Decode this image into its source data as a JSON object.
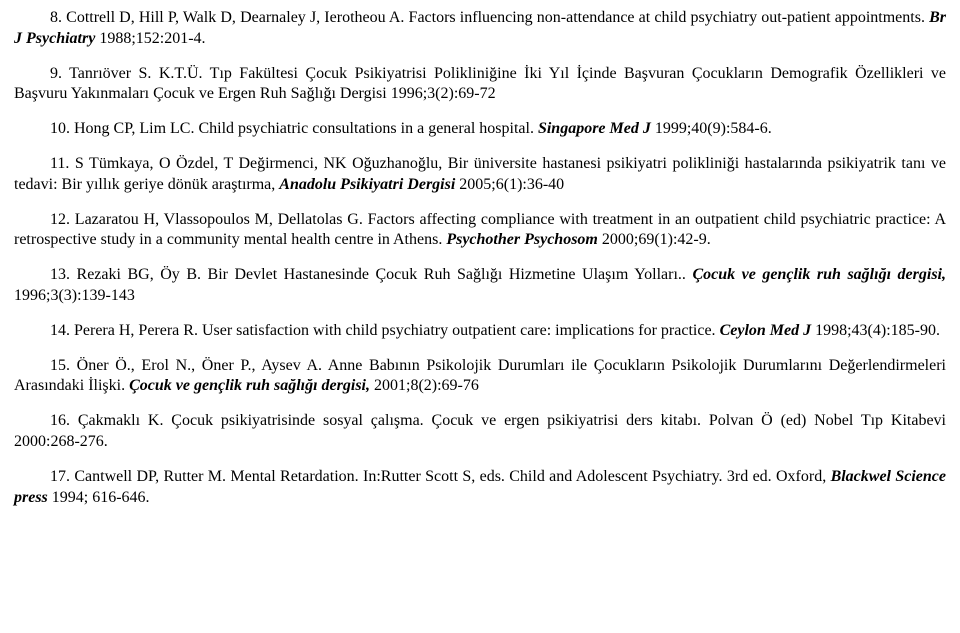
{
  "refs": [
    {
      "num": "8.",
      "pre": "Cottrell D, Hill P, Walk D, Dearnaley J, Ierotheou A. Factors influencing non-attendance at child psychiatry out-patient appointments. ",
      "ital": "Br J Psychiatry",
      "post": " 1988;152:201-4."
    },
    {
      "num": "9.",
      "pre": "Tanrıöver S. K.T.Ü. Tıp Fakültesi Çocuk Psikiyatrisi Polikliniğine İki Yıl İçinde Başvuran Çocukların Demografik Özellikleri ve Başvuru Yakınmaları Çocuk ve Ergen Ruh Sağlığı Dergisi 1996;3(2):69-72",
      "ital": "",
      "post": ""
    },
    {
      "num": "10.",
      "pre": "Hong CP, Lim LC. Child psychiatric consultations in a general hospital. ",
      "ital": "Singapore Med J",
      "post": " 1999;40(9):584-6."
    },
    {
      "num": "11.",
      "pre": "S Tümkaya, O Özdel, T Değirmenci, NK Oğuzhanoğlu, Bir üniversite hastanesi psikiyatri polikliniği hastalarında psikiyatrik tanı ve tedavi: Bir yıllık geriye dönük araştırma, ",
      "ital": "Anadolu Psikiyatri Dergisi",
      "post": " 2005;6(1):36-40"
    },
    {
      "num": "12.",
      "pre": "Lazaratou H, Vlassopoulos M, Dellatolas G. Factors affecting compliance with treatment in an outpatient child psychiatric practice: A retrospective study in a community mental health centre in Athens. ",
      "ital": "Psychother Psychosom",
      "post": " 2000;69(1):42-9."
    },
    {
      "num": "13.",
      "pre": "Rezaki BG, Öy B. Bir Devlet Hastanesinde Çocuk Ruh Sağlığı Hizmetine Ulaşım Yolları.. ",
      "ital": "Çocuk ve gençlik ruh sağlığı dergisi,",
      "post": " 1996;3(3):139-143"
    },
    {
      "num": "14.",
      "pre": "Perera H, Perera R. User satisfaction with child psychiatry outpatient care: implications for practice. ",
      "ital": "Ceylon Med J",
      "post": " 1998;43(4):185-90."
    },
    {
      "num": "15.",
      "pre": "Öner Ö., Erol N., Öner P., Aysev A. Anne Babının Psikolojik Durumları ile Çocukların Psikolojik Durumlarını Değerlendirmeleri Arasındaki İlişki. ",
      "ital": "Çocuk ve gençlik ruh sağlığı dergisi,",
      "post": " 2001;8(2):69-76"
    },
    {
      "num": "16.",
      "pre": "Çakmaklı K. Çocuk psikiyatrisinde sosyal çalışma. Çocuk ve ergen psikiyatrisi ders kitabı.  Polvan Ö (ed) Nobel Tıp Kitabevi 2000:268-276.",
      "ital": "",
      "post": ""
    },
    {
      "num": "17.",
      "pre": "Cantwell DP, Rutter M. Mental Retardation. In:Rutter Scott S, eds. Child and Adolescent Psychiatry. 3rd ed. Oxford, ",
      "ital": "Blackwel Science press",
      "post": " 1994; 616-646."
    }
  ]
}
